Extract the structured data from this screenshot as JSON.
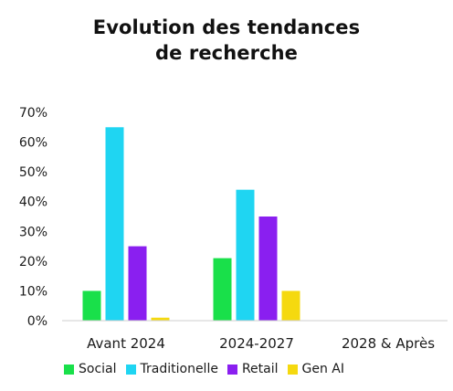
{
  "chart_data": {
    "type": "bar",
    "title_lines": [
      "Evolution des tendances",
      "de recherche"
    ],
    "categories": [
      "Avant 2024",
      "2024-2027",
      "2028 & Après"
    ],
    "series": [
      {
        "name": "Social",
        "color": "#19e04a",
        "values": [
          10,
          21,
          null
        ]
      },
      {
        "name": "Traditionelle",
        "color": "#1fd5f2",
        "values": [
          65,
          44,
          null
        ]
      },
      {
        "name": "Retail",
        "color": "#8a1ff0",
        "values": [
          25,
          35,
          null
        ]
      },
      {
        "name": "Gen AI",
        "color": "#f5d90f",
        "values": [
          1,
          10,
          null
        ]
      }
    ],
    "ylim": [
      0,
      70
    ],
    "yticks": [
      0,
      10,
      20,
      30,
      40,
      50,
      60,
      70
    ],
    "ytick_labels": [
      "0%",
      "10%",
      "20%",
      "30%",
      "40%",
      "50%",
      "60%",
      "70%"
    ],
    "grid": false,
    "legend_position": "bottom"
  }
}
